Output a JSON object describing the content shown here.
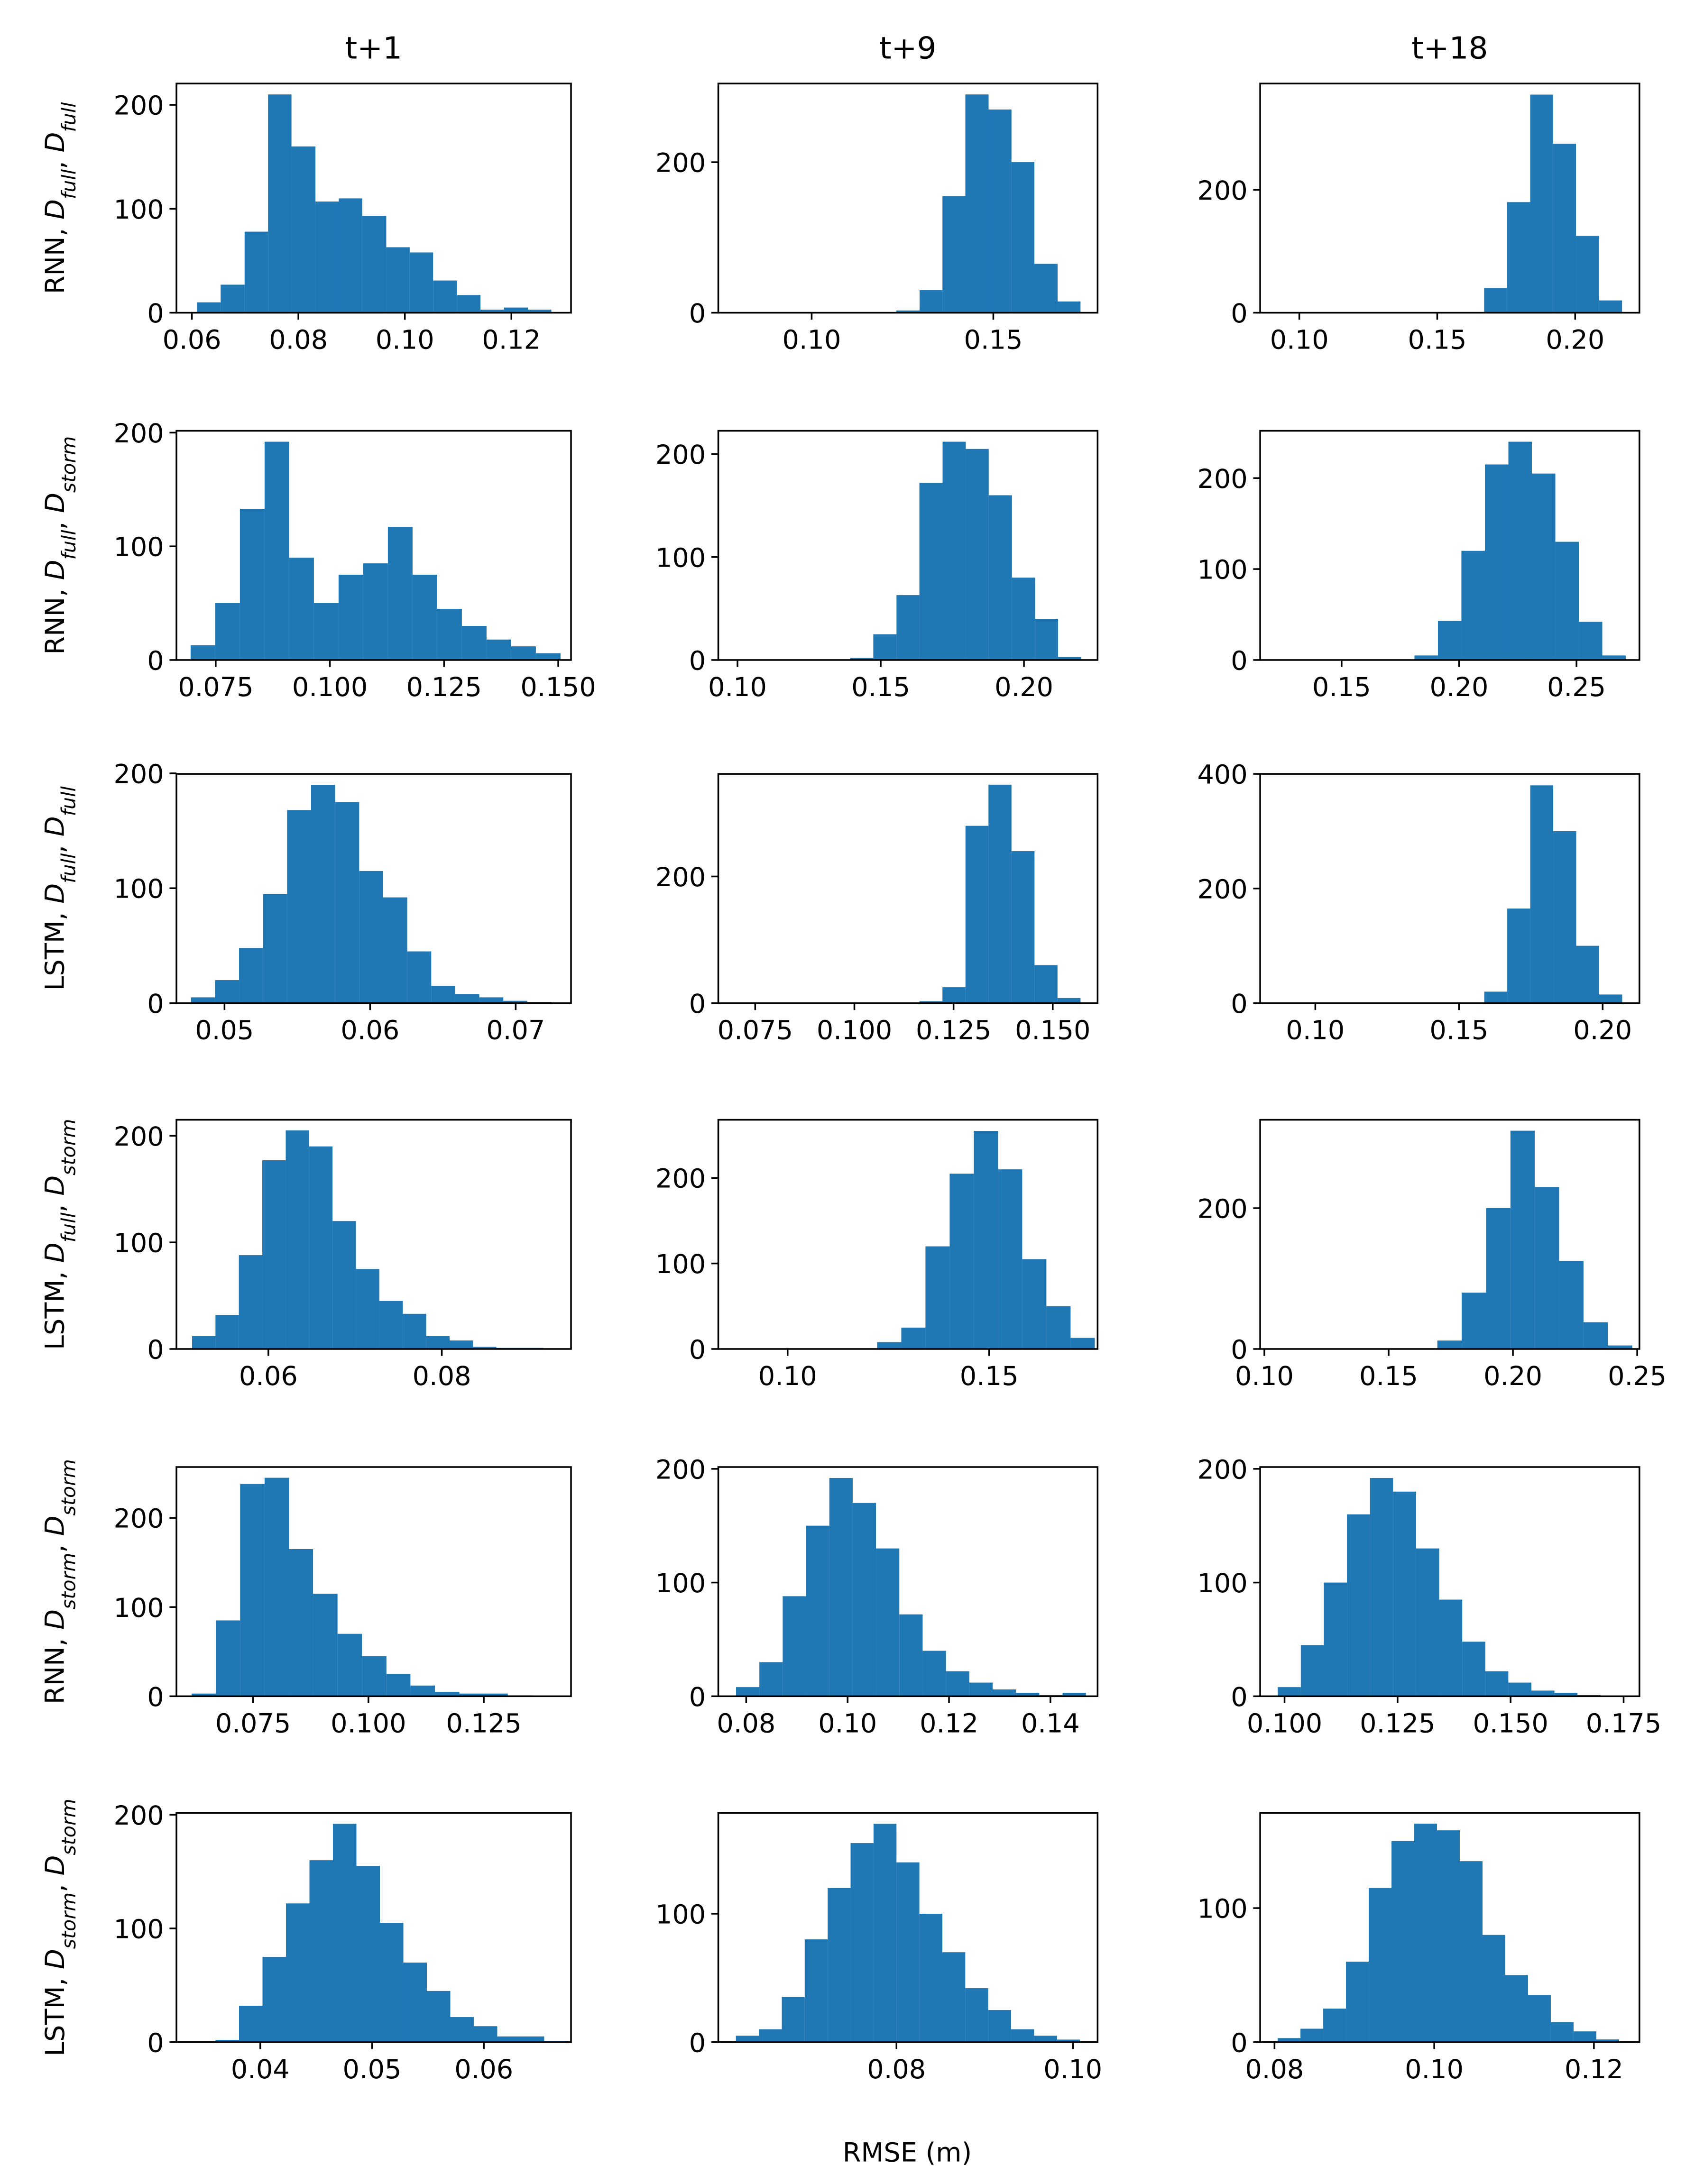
{
  "xlabel": "RMSE (m)",
  "chart_data": [
    {
      "type": "histogram",
      "title": "t+1",
      "ylabel": [
        "RNN, ",
        "D",
        "full",
        ", ",
        "D",
        "full"
      ],
      "color": "#1f77b4",
      "bins": [
        0.061,
        0.0654,
        0.0699,
        0.0743,
        0.0787,
        0.0832,
        0.0876,
        0.092,
        0.0965,
        0.1009,
        0.1053,
        0.1098,
        0.1142,
        0.1186,
        0.1231,
        0.1275
      ],
      "values": [
        10,
        27,
        78,
        210,
        160,
        107,
        110,
        93,
        63,
        58,
        31,
        17,
        3,
        5,
        3
      ],
      "xlim": [
        0.0571,
        0.1312
      ],
      "xticks": [
        0.06,
        0.08,
        {
          "value": 0.1,
          "label": "0.10"
        },
        0.12
      ],
      "ylim": [
        0,
        220.5
      ],
      "yticks": [
        0,
        100,
        200
      ]
    },
    {
      "type": "histogram",
      "title": "t+9",
      "color": "#1f77b4",
      "bins": [
        0.079,
        0.0853,
        0.0917,
        0.098,
        0.1043,
        0.1107,
        0.117,
        0.1233,
        0.1297,
        0.136,
        0.1423,
        0.1487,
        0.155,
        0.1613,
        0.1677,
        0.174
      ],
      "values": [
        0,
        0,
        0,
        0,
        0,
        0,
        0,
        3,
        30,
        155,
        290,
        270,
        200,
        65,
        15
      ],
      "xlim": [
        0.0743,
        0.1787
      ],
      "xticks": [
        {
          "value": 0.1,
          "label": "0.10"
        },
        0.15
      ],
      "ylim": [
        0,
        304.5
      ],
      "yticks": [
        0,
        200
      ]
    },
    {
      "type": "histogram",
      "title": "t+18",
      "color": "#1f77b4",
      "bins": [
        0.092,
        0.1003,
        0.1087,
        0.117,
        0.1253,
        0.1337,
        0.142,
        0.1503,
        0.1587,
        0.167,
        0.1753,
        0.1837,
        0.192,
        0.2003,
        0.2087,
        0.217
      ],
      "values": [
        0,
        0,
        0,
        0,
        0,
        0,
        0,
        0,
        0,
        40,
        180,
        355,
        275,
        125,
        20
      ],
      "xlim": [
        0.0858,
        0.2233
      ],
      "xticks": [
        {
          "value": 0.1,
          "label": "0.10"
        },
        0.15,
        {
          "value": 0.2,
          "label": "0.20"
        }
      ],
      "ylim": [
        0,
        373
      ],
      "yticks": [
        0,
        200
      ]
    },
    {
      "type": "histogram",
      "ylabel": [
        "RNN, ",
        "D",
        "full",
        ", ",
        "D",
        "storm"
      ],
      "color": "#1f77b4",
      "bins": [
        0.0695,
        0.0749,
        0.0803,
        0.0857,
        0.0911,
        0.0965,
        0.1019,
        0.1073,
        0.1127,
        0.1181,
        0.1235,
        0.1289,
        0.1343,
        0.1397,
        0.1451,
        0.1505
      ],
      "values": [
        13,
        50,
        133,
        192,
        90,
        50,
        75,
        85,
        117,
        75,
        45,
        30,
        18,
        12,
        6
      ],
      "xlim": [
        0.0664,
        0.1528
      ],
      "xticks": [
        0.075,
        {
          "value": 0.1,
          "label": "0.100"
        },
        0.125,
        {
          "value": 0.15,
          "label": "0.150"
        }
      ],
      "ylim": [
        0,
        201.6
      ],
      "yticks": [
        0,
        100,
        200
      ]
    },
    {
      "type": "histogram",
      "color": "#1f77b4",
      "bins": [
        0.099,
        0.1071,
        0.1151,
        0.1232,
        0.1313,
        0.1393,
        0.1474,
        0.1555,
        0.1635,
        0.1716,
        0.1797,
        0.1877,
        0.1958,
        0.2039,
        0.2119,
        0.22
      ],
      "values": [
        0,
        0,
        0,
        0,
        0,
        2,
        25,
        63,
        172,
        212,
        205,
        160,
        80,
        40,
        3
      ],
      "xlim": [
        0.0933,
        0.2257
      ],
      "xticks": [
        {
          "value": 0.1,
          "label": "0.10"
        },
        0.15,
        {
          "value": 0.2,
          "label": "0.20"
        }
      ],
      "ylim": [
        0,
        222.6
      ],
      "yticks": [
        0,
        100,
        200
      ]
    },
    {
      "type": "histogram",
      "color": "#1f77b4",
      "bins": [
        0.121,
        0.131,
        0.141,
        0.151,
        0.161,
        0.171,
        0.181,
        0.191,
        0.201,
        0.211,
        0.221,
        0.231,
        0.241,
        0.251,
        0.261,
        0.271
      ],
      "values": [
        0,
        0,
        0,
        0,
        0,
        0,
        5,
        43,
        120,
        215,
        240,
        205,
        130,
        42,
        5
      ],
      "xlim": [
        0.1153,
        0.2768
      ],
      "xticks": [
        0.15,
        {
          "value": 0.2,
          "label": "0.20"
        },
        0.25
      ],
      "ylim": [
        0,
        252
      ],
      "yticks": [
        0,
        100,
        200
      ]
    },
    {
      "type": "histogram",
      "ylabel": [
        "LSTM, ",
        "D",
        "full",
        ", ",
        "D",
        "full"
      ],
      "color": "#1f77b4",
      "bins": [
        0.0477,
        0.04935,
        0.051,
        0.05265,
        0.0543,
        0.05595,
        0.0576,
        0.05925,
        0.0609,
        0.06255,
        0.0642,
        0.06585,
        0.0675,
        0.06915,
        0.0708,
        0.07245
      ],
      "values": [
        5,
        20,
        48,
        95,
        168,
        190,
        175,
        115,
        92,
        45,
        15,
        8,
        5,
        2,
        1
      ],
      "xlim": [
        0.0467,
        0.0738
      ],
      "xticks": [
        0.05,
        0.06,
        0.07
      ],
      "ylim": [
        0,
        199.5
      ],
      "yticks": [
        0,
        100,
        200
      ]
    },
    {
      "type": "histogram",
      "color": "#1f77b4",
      "bins": [
        0.07,
        0.0758,
        0.0816,
        0.0874,
        0.0932,
        0.099,
        0.1048,
        0.1106,
        0.1164,
        0.1222,
        0.128,
        0.1338,
        0.1396,
        0.1454,
        0.1512,
        0.157
      ],
      "values": [
        0,
        0,
        0,
        0,
        0,
        0,
        0,
        0,
        3,
        25,
        280,
        345,
        240,
        60,
        8
      ],
      "xlim": [
        0.0657,
        0.1613
      ],
      "xticks": [
        0.075,
        {
          "value": 0.1,
          "label": "0.100"
        },
        0.125,
        {
          "value": 0.15,
          "label": "0.150"
        }
      ],
      "ylim": [
        0,
        362
      ],
      "yticks": [
        0,
        200
      ]
    },
    {
      "type": "histogram",
      "color": "#1f77b4",
      "bins": [
        0.0868,
        0.0948,
        0.1028,
        0.1108,
        0.1188,
        0.1268,
        0.1348,
        0.1428,
        0.1508,
        0.1588,
        0.1668,
        0.1748,
        0.1828,
        0.1908,
        0.1988,
        0.2068
      ],
      "values": [
        0,
        0,
        0,
        0,
        0,
        0,
        0,
        0,
        0,
        20,
        165,
        380,
        300,
        100,
        15
      ],
      "xlim": [
        0.0808,
        0.2128
      ],
      "xticks": [
        {
          "value": 0.1,
          "label": "0.10"
        },
        0.15,
        {
          "value": 0.2,
          "label": "0.20"
        }
      ],
      "ylim": [
        0,
        400
      ],
      "yticks": [
        0,
        200,
        400
      ]
    },
    {
      "type": "histogram",
      "ylabel": [
        "LSTM, ",
        "D",
        "full",
        ", ",
        "D",
        "storm"
      ],
      "color": "#1f77b4",
      "bins": [
        0.0512,
        0.0539,
        0.0566,
        0.0593,
        0.062,
        0.0647,
        0.0674,
        0.0701,
        0.0728,
        0.0755,
        0.0782,
        0.0809,
        0.0836,
        0.0863,
        0.089,
        0.0917
      ],
      "values": [
        12,
        32,
        88,
        177,
        205,
        190,
        120,
        75,
        45,
        33,
        12,
        8,
        2,
        1,
        1
      ],
      "xlim": [
        0.0494,
        0.0949
      ],
      "xticks": [
        0.06,
        0.08
      ],
      "ylim": [
        0,
        215
      ],
      "yticks": [
        0,
        100,
        200
      ]
    },
    {
      "type": "histogram",
      "color": "#1f77b4",
      "bins": [
        0.0862,
        0.0922,
        0.0982,
        0.1042,
        0.1102,
        0.1162,
        0.1222,
        0.1282,
        0.1342,
        0.1402,
        0.1462,
        0.1522,
        0.1582,
        0.1642,
        0.1702,
        0.1762
      ],
      "values": [
        0,
        0,
        0,
        0,
        0,
        0,
        8,
        25,
        120,
        205,
        255,
        210,
        105,
        50,
        13
      ],
      "xlim": [
        0.0828,
        0.1769
      ],
      "xticks": [
        {
          "value": 0.1,
          "label": "0.10"
        },
        0.15
      ],
      "ylim": [
        0,
        268
      ],
      "yticks": [
        0,
        100,
        200
      ]
    },
    {
      "type": "histogram",
      "color": "#1f77b4",
      "bins": [
        0.101,
        0.1108,
        0.1206,
        0.1304,
        0.1402,
        0.15,
        0.1598,
        0.1696,
        0.1794,
        0.1892,
        0.199,
        0.2088,
        0.2186,
        0.2284,
        0.2382,
        0.248
      ],
      "values": [
        0,
        0,
        0,
        0,
        0,
        0,
        0,
        12,
        80,
        200,
        310,
        230,
        125,
        38,
        5
      ],
      "xlim": [
        0.0983,
        0.2509
      ],
      "xticks": [
        {
          "value": 0.1,
          "label": "0.10"
        },
        0.15,
        {
          "value": 0.2,
          "label": "0.20"
        },
        0.25
      ],
      "ylim": [
        0,
        325.5
      ],
      "yticks": [
        0,
        200
      ]
    },
    {
      "type": "histogram",
      "ylabel": [
        "RNN, ",
        "D",
        "storm",
        ", ",
        "D",
        "storm"
      ],
      "color": "#1f77b4",
      "bins": [
        0.0617,
        0.067,
        0.0722,
        0.0775,
        0.0828,
        0.088,
        0.0933,
        0.0986,
        0.1039,
        0.1091,
        0.1144,
        0.1197,
        0.1249,
        0.1302,
        0.1355,
        0.1408
      ],
      "values": [
        3,
        85,
        238,
        245,
        165,
        115,
        70,
        45,
        25,
        12,
        5,
        3,
        3,
        1,
        0
      ],
      "xlim": [
        0.0584,
        0.1439
      ],
      "xticks": [
        0.075,
        {
          "value": 0.1,
          "label": "0.100"
        },
        0.125
      ],
      "ylim": [
        0,
        257
      ],
      "yticks": [
        0,
        100,
        200
      ]
    },
    {
      "type": "histogram",
      "color": "#1f77b4",
      "bins": [
        0.078,
        0.0826,
        0.0872,
        0.0918,
        0.0964,
        0.101,
        0.1056,
        0.1102,
        0.1148,
        0.1194,
        0.124,
        0.1286,
        0.1332,
        0.1378,
        0.1424,
        0.147
      ],
      "values": [
        8,
        30,
        88,
        150,
        192,
        170,
        130,
        72,
        40,
        22,
        12,
        6,
        3,
        1,
        3
      ],
      "xlim": [
        0.0745,
        0.1493
      ],
      "xticks": [
        0.08,
        {
          "value": 0.1,
          "label": "0.10"
        },
        0.12,
        0.14
      ],
      "ylim": [
        0,
        201.6
      ],
      "yticks": [
        0,
        100,
        200
      ]
    },
    {
      "type": "histogram",
      "color": "#1f77b4",
      "bins": [
        0.0985,
        0.1036,
        0.1087,
        0.1138,
        0.1189,
        0.124,
        0.1291,
        0.1342,
        0.1393,
        0.1444,
        0.1495,
        0.1546,
        0.1597,
        0.1648,
        0.1699,
        0.175
      ],
      "values": [
        8,
        45,
        100,
        160,
        192,
        180,
        130,
        85,
        48,
        22,
        12,
        5,
        3,
        1,
        0
      ],
      "xlim": [
        0.0946,
        0.1785
      ],
      "xticks": [
        {
          "value": 0.1,
          "label": "0.100"
        },
        0.125,
        {
          "value": 0.15,
          "label": "0.150"
        },
        0.175
      ],
      "ylim": [
        0,
        201.6
      ],
      "yticks": [
        0,
        100,
        200
      ]
    },
    {
      "type": "histogram",
      "ylabel": [
        "LSTM, ",
        "D",
        "storm",
        ", ",
        "D",
        "storm"
      ],
      "color": "#1f77b4",
      "bins": [
        0.036,
        0.0381,
        0.0402,
        0.0423,
        0.0444,
        0.0465,
        0.0486,
        0.0507,
        0.0528,
        0.0549,
        0.057,
        0.0591,
        0.0612,
        0.0633,
        0.0654,
        0.0675
      ],
      "values": [
        2,
        32,
        75,
        122,
        160,
        192,
        155,
        105,
        70,
        45,
        22,
        14,
        5,
        5,
        1
      ],
      "xlim": [
        0.0325,
        0.0678
      ],
      "xticks": [
        0.04,
        0.05,
        0.06
      ],
      "ylim": [
        0,
        201.6
      ],
      "yticks": [
        0,
        100,
        200
      ]
    },
    {
      "type": "histogram",
      "color": "#1f77b4",
      "bins": [
        0.0618,
        0.0644,
        0.067,
        0.0696,
        0.0722,
        0.0748,
        0.0774,
        0.08,
        0.0826,
        0.0852,
        0.0878,
        0.0904,
        0.093,
        0.0956,
        0.0982,
        0.1008
      ],
      "values": [
        5,
        10,
        35,
        80,
        120,
        155,
        170,
        140,
        100,
        70,
        42,
        25,
        10,
        5,
        2
      ],
      "xlim": [
        0.0598,
        0.1028
      ],
      "xticks": [
        0.08,
        {
          "value": 0.1,
          "label": "0.10"
        }
      ],
      "ylim": [
        0,
        178.5
      ],
      "yticks": [
        0,
        100
      ]
    },
    {
      "type": "histogram",
      "color": "#1f77b4",
      "bins": [
        0.0804,
        0.08325,
        0.0861,
        0.08895,
        0.0918,
        0.09465,
        0.0975,
        0.10035,
        0.1032,
        0.10605,
        0.1089,
        0.11175,
        0.1146,
        0.11745,
        0.1203,
        0.12315
      ],
      "values": [
        3,
        10,
        25,
        60,
        115,
        150,
        163,
        158,
        135,
        80,
        50,
        35,
        15,
        8,
        2
      ],
      "xlim": [
        0.0782,
        0.1257
      ],
      "xticks": [
        0.08,
        {
          "value": 0.1,
          "label": "0.10"
        },
        0.12
      ],
      "ylim": [
        0,
        171
      ],
      "yticks": [
        0,
        100
      ]
    }
  ]
}
